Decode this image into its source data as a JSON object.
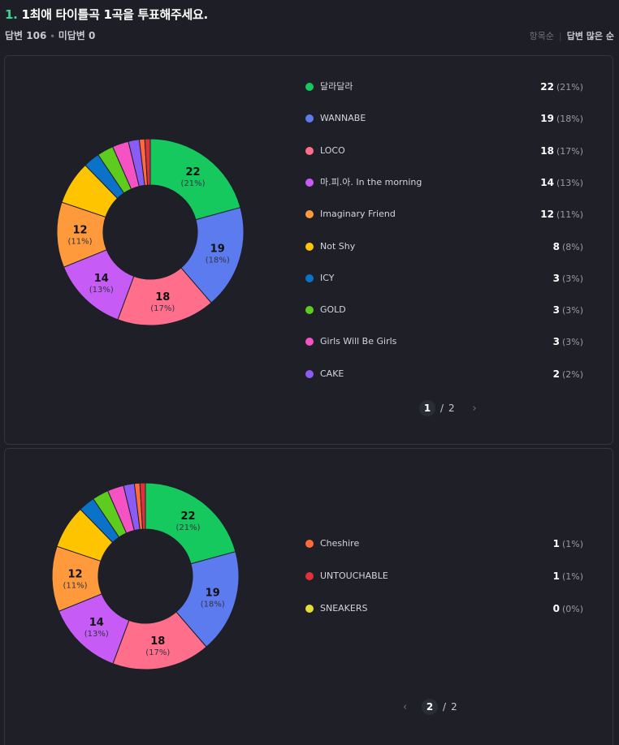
{
  "header": {
    "number": "1.",
    "question": "1최애 타이틀곡 1곡을 투표해주세요.",
    "answered": "답변 106",
    "unanswered": "미답변 0",
    "sort_item": "항목순",
    "sort_answers": "답변 많은 순"
  },
  "chart_data": {
    "type": "pie",
    "style": "donut",
    "categories": [
      "달라달라",
      "WANNABE",
      "LOCO",
      "마.피.아. In the morning",
      "Imaginary Friend",
      "Not Shy",
      "ICY",
      "GOLD",
      "Girls Will Be Girls",
      "CAKE",
      "Cheshire",
      "UNTOUCHABLE",
      "SNEAKERS"
    ],
    "values": [
      22,
      19,
      18,
      14,
      12,
      8,
      3,
      3,
      3,
      2,
      1,
      1,
      0
    ],
    "percents": [
      "(21%)",
      "(18%)",
      "(17%)",
      "(13%)",
      "(11%)",
      "(8%)",
      "(3%)",
      "(3%)",
      "(3%)",
      "(2%)",
      "(1%)",
      "(1%)",
      "(0%)"
    ],
    "colors": [
      "#16c95e",
      "#5b7bef",
      "#ff6f8c",
      "#c65cf5",
      "#ff9a3c",
      "#ffc400",
      "#0a72c9",
      "#5ecc1e",
      "#f552c4",
      "#8b5cf5",
      "#ff6a3d",
      "#e0303b",
      "#e6dc3a"
    ],
    "total": 106
  },
  "legend_page1": [
    {
      "name": "달라달라",
      "count": "22",
      "pct": "(21%)",
      "color": "#16c95e"
    },
    {
      "name": "WANNABE",
      "count": "19",
      "pct": "(18%)",
      "color": "#5b7bef"
    },
    {
      "name": "LOCO",
      "count": "18",
      "pct": "(17%)",
      "color": "#ff6f8c"
    },
    {
      "name": "마.피.아. In the morning",
      "count": "14",
      "pct": "(13%)",
      "color": "#c65cf5"
    },
    {
      "name": "Imaginary Friend",
      "count": "12",
      "pct": "(11%)",
      "color": "#ff9a3c"
    },
    {
      "name": "Not Shy",
      "count": "8",
      "pct": "(8%)",
      "color": "#ffc400"
    },
    {
      "name": "ICY",
      "count": "3",
      "pct": "(3%)",
      "color": "#0a72c9"
    },
    {
      "name": "GOLD",
      "count": "3",
      "pct": "(3%)",
      "color": "#5ecc1e"
    },
    {
      "name": "Girls Will Be Girls",
      "count": "3",
      "pct": "(3%)",
      "color": "#f552c4"
    },
    {
      "name": "CAKE",
      "count": "2",
      "pct": "(2%)",
      "color": "#8b5cf5"
    }
  ],
  "legend_page2": [
    {
      "name": "Cheshire",
      "count": "1",
      "pct": "(1%)",
      "color": "#ff6a3d"
    },
    {
      "name": "UNTOUCHABLE",
      "count": "1",
      "pct": "(1%)",
      "color": "#e0303b"
    },
    {
      "name": "SNEAKERS",
      "count": "0",
      "pct": "(0%)",
      "color": "#e6dc3a"
    }
  ],
  "pager1": {
    "current": "1",
    "slash": "/",
    "total": "2",
    "next_icon": "chevron-right-icon"
  },
  "pager2": {
    "current": "2",
    "slash": "/",
    "total": "2",
    "prev_icon": "chevron-left-icon"
  }
}
